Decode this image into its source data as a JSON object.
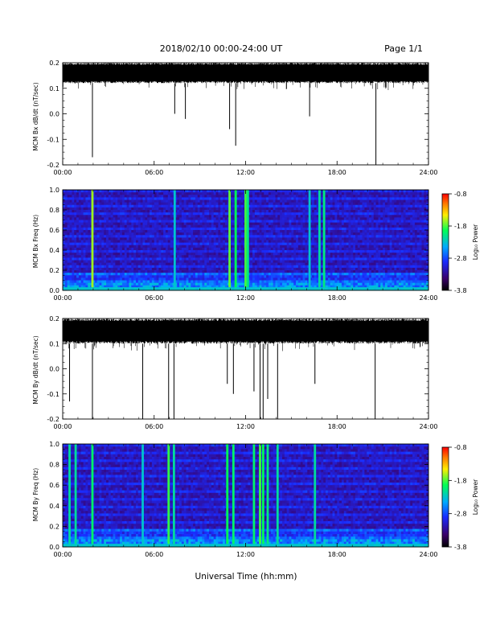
{
  "header": {
    "date_range": "2018/02/10  00:00-24:00 UT",
    "page": "Page 1/1"
  },
  "xaxis": {
    "title": "Universal Time (hh:mm)",
    "ticks": [
      "00:00",
      "06:00",
      "12:00",
      "18:00",
      "24:00"
    ],
    "range_hours": [
      0,
      24
    ]
  },
  "colorbar": {
    "label": "Log₁₀ Power",
    "ticks": [
      "-0.8",
      "-1.8",
      "-2.8",
      "-3.8"
    ],
    "range": [
      -3.8,
      -0.8
    ],
    "colors": [
      "#000000",
      "#3a0068",
      "#1a2cff",
      "#00aaff",
      "#00ff55",
      "#ffee00",
      "#ff7700",
      "#ff0000"
    ]
  },
  "chart_data": [
    {
      "type": "line",
      "title": "",
      "ylabel": "MCM Bx dB/dt (nT/sec)",
      "ylim": [
        -0.2,
        0.2
      ],
      "yticks": [
        "0.2",
        "0.1",
        "0.0",
        "-0.1",
        "-0.2"
      ],
      "baseline_band": [
        0.12,
        0.2
      ],
      "spikes": [
        {
          "t": 1.95,
          "v": -0.17
        },
        {
          "t": 7.35,
          "v": 0.0
        },
        {
          "t": 8.05,
          "v": -0.02
        },
        {
          "t": 10.95,
          "v": -0.06
        },
        {
          "t": 11.35,
          "v": -0.125
        },
        {
          "t": 16.2,
          "v": -0.01
        },
        {
          "t": 20.55,
          "v": -0.2
        }
      ]
    },
    {
      "type": "heatmap",
      "title": "",
      "ylabel": "MCM Bx Freq (Hz)",
      "ylim": [
        0.0,
        1.0
      ],
      "yticks": [
        "1.0",
        "0.8",
        "0.6",
        "0.4",
        "0.2",
        "0.0"
      ],
      "events": [
        {
          "t": 1.95,
          "level": 0.72
        },
        {
          "t": 7.35,
          "level": 0.5
        },
        {
          "t": 10.95,
          "level": 0.68
        },
        {
          "t": 11.35,
          "level": 0.62
        },
        {
          "t": 12.0,
          "level": 0.66
        },
        {
          "t": 12.15,
          "level": 0.58
        },
        {
          "t": 16.2,
          "level": 0.5
        },
        {
          "t": 16.85,
          "level": 0.55
        },
        {
          "t": 17.15,
          "level": 0.58
        }
      ]
    },
    {
      "type": "line",
      "title": "",
      "ylabel": "MCM By dB/dt (nT/sec)",
      "ylim": [
        -0.2,
        0.2
      ],
      "yticks": [
        "0.2",
        "0.1",
        "0.0",
        "-0.1",
        "-0.2"
      ],
      "baseline_band": [
        0.1,
        0.2
      ],
      "spikes": [
        {
          "t": 0.45,
          "v": -0.13
        },
        {
          "t": 1.95,
          "v": -0.2
        },
        {
          "t": 5.25,
          "v": -0.2
        },
        {
          "t": 6.95,
          "v": -0.2
        },
        {
          "t": 7.3,
          "v": -0.2
        },
        {
          "t": 10.8,
          "v": -0.06
        },
        {
          "t": 11.2,
          "v": -0.1
        },
        {
          "t": 12.55,
          "v": -0.09
        },
        {
          "t": 12.95,
          "v": -0.2
        },
        {
          "t": 13.15,
          "v": -0.2
        },
        {
          "t": 13.45,
          "v": -0.12
        },
        {
          "t": 14.1,
          "v": -0.2
        },
        {
          "t": 16.55,
          "v": -0.06
        },
        {
          "t": 20.5,
          "v": -0.2
        }
      ]
    },
    {
      "type": "heatmap",
      "title": "",
      "ylabel": "MCM By Freq (Hz)",
      "ylim": [
        0.0,
        1.0
      ],
      "yticks": [
        "1.0",
        "0.8",
        "0.6",
        "0.4",
        "0.2",
        "0.0"
      ],
      "events": [
        {
          "t": 0.45,
          "level": 0.55
        },
        {
          "t": 0.85,
          "level": 0.55
        },
        {
          "t": 1.95,
          "level": 0.6
        },
        {
          "t": 5.25,
          "level": 0.5
        },
        {
          "t": 6.95,
          "level": 0.65
        },
        {
          "t": 7.3,
          "level": 0.55
        },
        {
          "t": 10.8,
          "level": 0.62
        },
        {
          "t": 11.2,
          "level": 0.6
        },
        {
          "t": 12.55,
          "level": 0.6
        },
        {
          "t": 12.95,
          "level": 0.66
        },
        {
          "t": 13.15,
          "level": 0.62
        },
        {
          "t": 13.45,
          "level": 0.58
        },
        {
          "t": 14.1,
          "level": 0.55
        },
        {
          "t": 16.55,
          "level": 0.55
        }
      ]
    }
  ]
}
